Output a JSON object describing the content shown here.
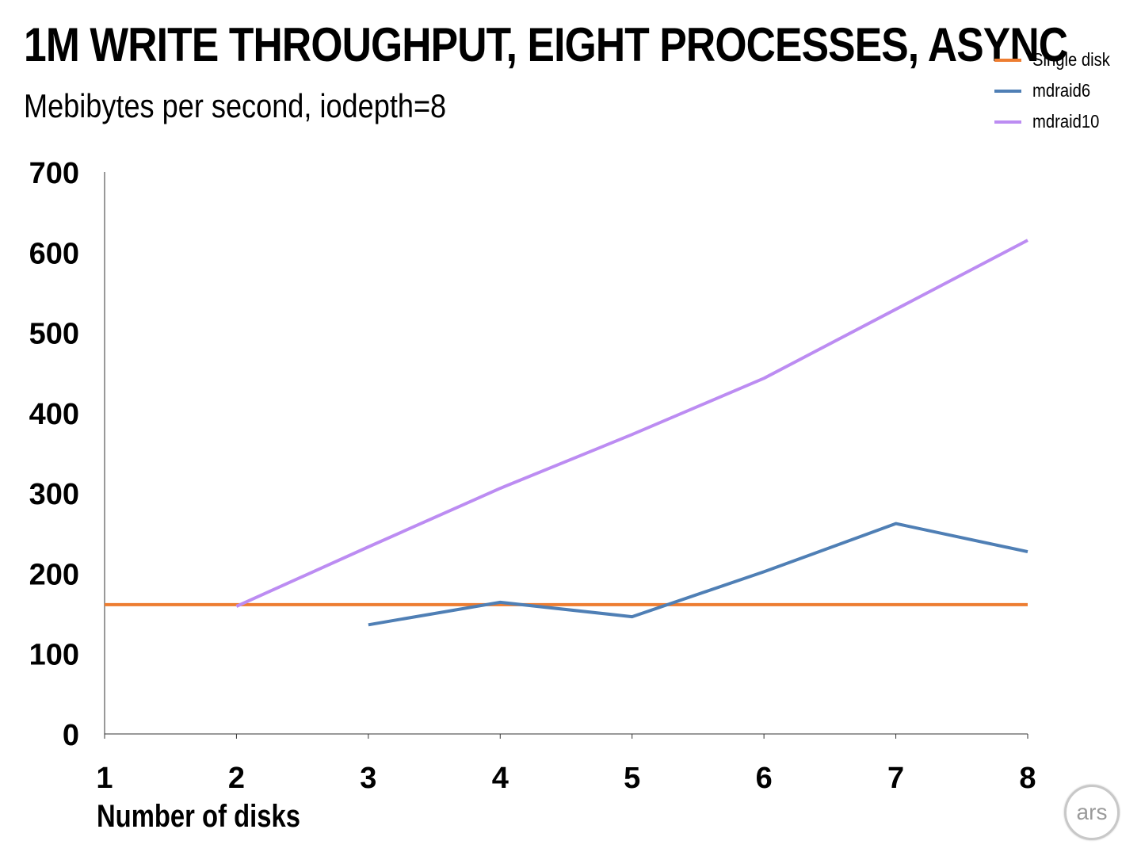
{
  "chart_data": {
    "type": "line",
    "title": "1M WRITE THROUGHPUT, EIGHT PROCESSES, ASYNC",
    "subtitle": "Mebibytes per second, iodepth=8",
    "xlabel": "Number of disks",
    "ylabel": "",
    "x": [
      1,
      2,
      3,
      4,
      5,
      6,
      7,
      8
    ],
    "ylim": [
      0,
      700
    ],
    "yticks": [
      0,
      100,
      200,
      300,
      400,
      500,
      600,
      700
    ],
    "grid": false,
    "legend_position": "top-right",
    "series": [
      {
        "name": "Single disk",
        "color": "#ED7D31",
        "values": [
          161,
          161,
          161,
          161,
          161,
          161,
          161,
          161
        ]
      },
      {
        "name": "mdraid6",
        "color": "#4F7FB5",
        "values": [
          null,
          null,
          136,
          164,
          146,
          202,
          262,
          227
        ]
      },
      {
        "name": "mdraid10",
        "color": "#BC8CF2",
        "values": [
          null,
          159,
          233,
          306,
          373,
          443,
          529,
          615
        ]
      }
    ]
  },
  "logo": {
    "text": "ars"
  }
}
